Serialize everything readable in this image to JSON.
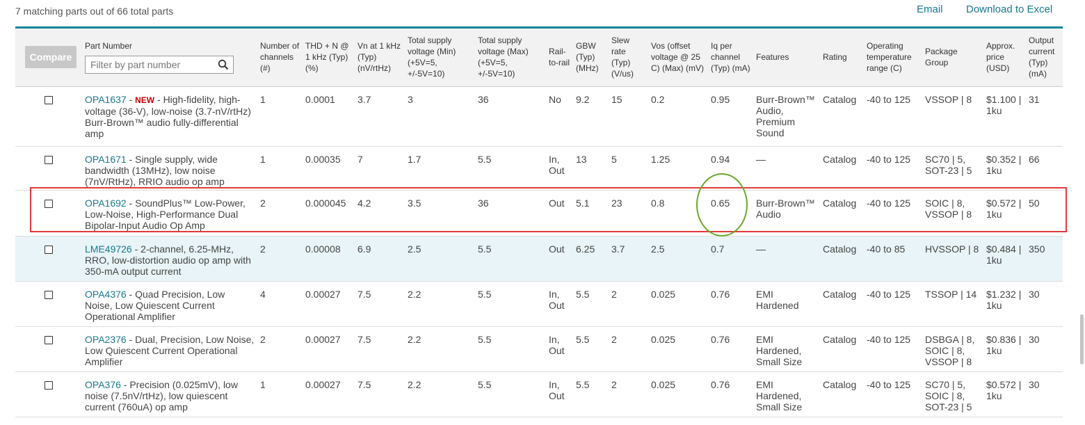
{
  "summary": "7 matching parts out of 66 total parts",
  "links": {
    "email": "Email",
    "excel": "Download to Excel"
  },
  "compare_label": "Compare",
  "filter": {
    "label": "Part Number",
    "placeholder": "Filter by part number",
    "value": ""
  },
  "columns": [
    "Number of channels (#)",
    "THD + N @ 1 kHz (Typ) (%)",
    "Vn at 1 kHz (Typ) (nV/rtHz)",
    "Total supply voltage (Min) (+5V=5, +/-5V=10)",
    "Total supply voltage (Max) (+5V=5, +/-5V=10)",
    "Rail-to-rail",
    "GBW (Typ) (MHz)",
    "Slew rate (Typ) (V/us)",
    "Vos (offset voltage @ 25 C) (Max) (mV)",
    "Iq per channel (Typ) (mA)",
    "Features",
    "Rating",
    "Operating temperature range (C)",
    "Package Group",
    "Approx. price (USD)",
    "Output current (Typ) (mA)"
  ],
  "rows": [
    {
      "part": "OPA1637",
      "new": "NEW",
      "desc": " - High-fidelity, high-voltage (36-V), low-noise (3.7-nV/rtHz) Burr-Brown™ audio fully-differential amp",
      "channels": "1",
      "thd": "0.0001",
      "vn": "3.7",
      "vmin": "3",
      "vmax": "36",
      "rail": "No",
      "gbw": "9.2",
      "slew": "15",
      "vos": "0.2",
      "iq": "0.95",
      "features": "Burr-Brown™ Audio, Premium Sound",
      "rating": "Catalog",
      "temp": "-40 to 125",
      "package": "VSSOP | 8",
      "price": "$1.100 | 1ku",
      "iout": "31"
    },
    {
      "part": "OPA1671",
      "new": "",
      "desc": " - Single supply, wide bandwidth (13MHz), low noise (7nV/RtHz), RRIO audio op amp",
      "channels": "1",
      "thd": "0.00035",
      "vn": "7",
      "vmin": "1.7",
      "vmax": "5.5",
      "rail": "In, Out",
      "gbw": "13",
      "slew": "5",
      "vos": "1.25",
      "iq": "0.94",
      "features": "—",
      "rating": "Catalog",
      "temp": "-40 to 125",
      "package": "SC70 | 5, SOT-23 | 5",
      "price": "$0.352 | 1ku",
      "iout": "66"
    },
    {
      "part": "OPA1692",
      "new": "",
      "desc": " - SoundPlus™ Low-Power, Low-Noise, High-Performance Dual Bipolar-Input Audio Op Amp",
      "channels": "2",
      "thd": "0.000045",
      "vn": "4.2",
      "vmin": "3.5",
      "vmax": "36",
      "rail": "Out",
      "gbw": "5.1",
      "slew": "23",
      "vos": "0.8",
      "iq": "0.65",
      "features": "Burr-Brown™ Audio",
      "rating": "Catalog",
      "temp": "-40 to 125",
      "package": "SOIC | 8, VSSOP | 8",
      "price": "$0.572 | 1ku",
      "iout": "50"
    },
    {
      "part": "LME49726",
      "new": "",
      "desc": " - 2-channel, 6.25-MHz, RRO, low-distortion audio op amp with 350-mA output current",
      "channels": "2",
      "thd": "0.00008",
      "vn": "6.9",
      "vmin": "2.5",
      "vmax": "5.5",
      "rail": "Out",
      "gbw": "6.25",
      "slew": "3.7",
      "vos": "2.5",
      "iq": "0.7",
      "features": "—",
      "rating": "Catalog",
      "temp": "-40 to 85",
      "package": "HVSSOP | 8",
      "price": "$0.484 | 1ku",
      "iout": "350"
    },
    {
      "part": "OPA4376",
      "new": "",
      "desc": " - Quad Precision, Low Noise, Low Quiescent Current Operational Amplifier",
      "channels": "4",
      "thd": "0.00027",
      "vn": "7.5",
      "vmin": "2.2",
      "vmax": "5.5",
      "rail": "In, Out",
      "gbw": "5.5",
      "slew": "2",
      "vos": "0.025",
      "iq": "0.76",
      "features": "EMI Hardened",
      "rating": "Catalog",
      "temp": "-40 to 125",
      "package": "TSSOP | 14",
      "price": "$1.232 | 1ku",
      "iout": "30"
    },
    {
      "part": "OPA2376",
      "new": "",
      "desc": " - Dual, Precision, Low Noise, Low Quiescent Current Operational Amplifier",
      "channels": "2",
      "thd": "0.00027",
      "vn": "7.5",
      "vmin": "2.2",
      "vmax": "5.5",
      "rail": "In, Out",
      "gbw": "5.5",
      "slew": "2",
      "vos": "0.025",
      "iq": "0.76",
      "features": "EMI Hardened, Small Size",
      "rating": "Catalog",
      "temp": "-40 to 125",
      "package": "DSBGA | 8, SOIC | 8, VSSOP | 8",
      "price": "$0.836 | 1ku",
      "iout": "30"
    },
    {
      "part": "OPA376",
      "new": "",
      "desc": " - Precision (0.025mV), low noise (7.5nV/rtHz), low quiescent current (760uA) op amp",
      "channels": "1",
      "thd": "0.00027",
      "vn": "7.5",
      "vmin": "2.2",
      "vmax": "5.5",
      "rail": "In, Out",
      "gbw": "5.5",
      "slew": "2",
      "vos": "0.025",
      "iq": "0.76",
      "features": "EMI Hardened, Small Size",
      "rating": "Catalog",
      "temp": "-40 to 125",
      "package": "SC70 | 5, SOIC | 8, SOT-23 | 5",
      "price": "$0.572 | 1ku",
      "iout": "30"
    }
  ],
  "colors": {
    "accent": "#17788f",
    "rule": "#118899",
    "new": "#cc0000",
    "highlight_box": "#e03a3a",
    "highlight_oval": "#6aa829",
    "hover_row": "#e8f4f7"
  },
  "icons": {
    "filter": "search-icon",
    "row_select": "checkbox-icon"
  }
}
